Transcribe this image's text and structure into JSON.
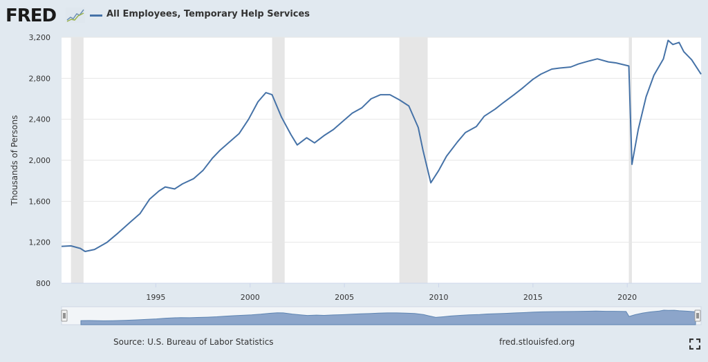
{
  "header": {
    "logo_text": "FRED",
    "legend_label": "All Employees, Temporary Help Services"
  },
  "footer": {
    "source": "Source: U.S. Bureau of Labor Statistics",
    "url": "fred.stlouisfed.org"
  },
  "colors": {
    "series": "#4572a7",
    "recession": "#e6e6e6",
    "background": "#e1e9f0",
    "plot_background": "#ffffff",
    "navigator_fill": "#7b98c2"
  },
  "icons": {
    "fullscreen": "fullscreen-icon",
    "navigator_handles": "grip-handle-icon"
  },
  "chart_data": {
    "type": "line",
    "title": "",
    "xlabel": "",
    "ylabel": "Thousands of Persons",
    "ylim": [
      800,
      3200
    ],
    "xlim": [
      "1990-01",
      "2023-12"
    ],
    "yticks": [
      800,
      1200,
      1600,
      2000,
      2400,
      2800,
      3200
    ],
    "yticklabels": [
      "800",
      "1,200",
      "1,600",
      "2,000",
      "2,400",
      "2,800",
      "3,200"
    ],
    "xticks": [
      "1995-01",
      "2000-01",
      "2005-01",
      "2010-01",
      "2015-01",
      "2020-01"
    ],
    "xticklabels": [
      "1995",
      "2000",
      "2005",
      "2010",
      "2015",
      "2020"
    ],
    "grid": "horizontal",
    "legend_placement": "top-left",
    "recessions": [
      {
        "start": "1990-07",
        "end": "1991-03"
      },
      {
        "start": "2001-03",
        "end": "2001-11"
      },
      {
        "start": "2007-12",
        "end": "2009-06"
      },
      {
        "start": "2020-02",
        "end": "2020-04"
      }
    ],
    "series": [
      {
        "name": "All Employees, Temporary Help Services",
        "points": [
          [
            "1990-01",
            1160
          ],
          [
            "1990-07",
            1165
          ],
          [
            "1991-01",
            1140
          ],
          [
            "1991-04",
            1110
          ],
          [
            "1991-10",
            1130
          ],
          [
            "1992-06",
            1200
          ],
          [
            "1993-01",
            1290
          ],
          [
            "1993-09",
            1400
          ],
          [
            "1994-03",
            1480
          ],
          [
            "1994-09",
            1620
          ],
          [
            "1995-03",
            1700
          ],
          [
            "1995-07",
            1740
          ],
          [
            "1996-01",
            1720
          ],
          [
            "1996-06",
            1770
          ],
          [
            "1997-01",
            1820
          ],
          [
            "1997-07",
            1900
          ],
          [
            "1998-01",
            2020
          ],
          [
            "1998-06",
            2100
          ],
          [
            "1998-12",
            2180
          ],
          [
            "1999-06",
            2260
          ],
          [
            "1999-12",
            2400
          ],
          [
            "2000-06",
            2570
          ],
          [
            "2000-11",
            2660
          ],
          [
            "2001-03",
            2640
          ],
          [
            "2001-09",
            2420
          ],
          [
            "2002-03",
            2250
          ],
          [
            "2002-07",
            2150
          ],
          [
            "2003-01",
            2220
          ],
          [
            "2003-06",
            2170
          ],
          [
            "2003-12",
            2240
          ],
          [
            "2004-06",
            2300
          ],
          [
            "2004-12",
            2380
          ],
          [
            "2005-06",
            2460
          ],
          [
            "2005-12",
            2510
          ],
          [
            "2006-06",
            2600
          ],
          [
            "2006-12",
            2640
          ],
          [
            "2007-06",
            2640
          ],
          [
            "2007-12",
            2590
          ],
          [
            "2008-06",
            2530
          ],
          [
            "2008-12",
            2320
          ],
          [
            "2009-03",
            2100
          ],
          [
            "2009-08",
            1780
          ],
          [
            "2010-01",
            1900
          ],
          [
            "2010-06",
            2040
          ],
          [
            "2011-01",
            2180
          ],
          [
            "2011-06",
            2270
          ],
          [
            "2012-01",
            2330
          ],
          [
            "2012-06",
            2430
          ],
          [
            "2013-01",
            2500
          ],
          [
            "2013-06",
            2560
          ],
          [
            "2014-01",
            2640
          ],
          [
            "2014-06",
            2700
          ],
          [
            "2015-01",
            2790
          ],
          [
            "2015-06",
            2840
          ],
          [
            "2016-01",
            2890
          ],
          [
            "2016-06",
            2900
          ],
          [
            "2017-01",
            2910
          ],
          [
            "2017-06",
            2940
          ],
          [
            "2018-01",
            2970
          ],
          [
            "2018-06",
            2990
          ],
          [
            "2019-01",
            2960
          ],
          [
            "2019-06",
            2950
          ],
          [
            "2020-02",
            2920
          ],
          [
            "2020-04",
            1960
          ],
          [
            "2020-08",
            2300
          ],
          [
            "2021-01",
            2620
          ],
          [
            "2021-06",
            2830
          ],
          [
            "2021-12",
            2990
          ],
          [
            "2022-03",
            3170
          ],
          [
            "2022-06",
            3130
          ],
          [
            "2022-10",
            3150
          ],
          [
            "2023-01",
            3060
          ],
          [
            "2023-06",
            2980
          ],
          [
            "2023-12",
            2840
          ]
        ]
      }
    ]
  }
}
